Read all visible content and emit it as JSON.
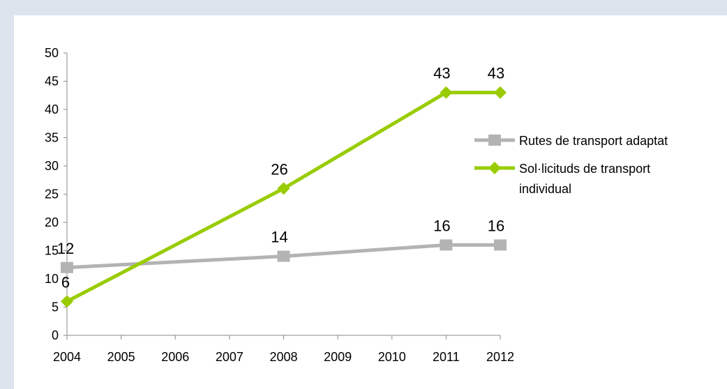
{
  "caption": "",
  "chart_data": {
    "type": "line",
    "title": "",
    "xlabel": "",
    "ylabel": "",
    "x": [
      2004,
      2005,
      2006,
      2007,
      2008,
      2009,
      2010,
      2011,
      2012
    ],
    "ylim": [
      0,
      50
    ],
    "yticks": [
      0,
      5,
      10,
      15,
      20,
      25,
      30,
      35,
      40,
      45,
      50
    ],
    "grid": false,
    "legend_position": "right",
    "series": [
      {
        "name": "Rutes de transport adaptat",
        "color": "#b3b3b3",
        "marker": "square",
        "points": [
          [
            2004,
            12
          ],
          [
            2008,
            14
          ],
          [
            2011,
            16
          ],
          [
            2012,
            16
          ]
        ],
        "labels": [
          "12",
          "14",
          "16",
          "16"
        ]
      },
      {
        "name": "Sol·licituds de transport individual",
        "legend_lines": [
          "Sol·licituds de transport",
          "individual"
        ],
        "color": "#99cc00",
        "marker": "diamond",
        "points": [
          [
            2004,
            6
          ],
          [
            2008,
            26
          ],
          [
            2011,
            43
          ],
          [
            2012,
            43
          ]
        ],
        "labels": [
          "6",
          "26",
          "43",
          "43"
        ]
      }
    ]
  }
}
